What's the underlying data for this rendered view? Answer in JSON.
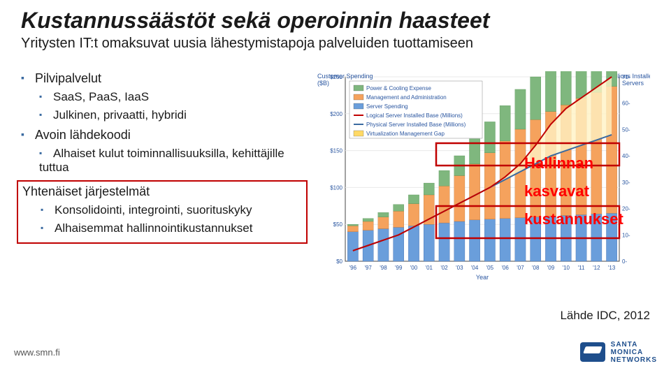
{
  "header": {
    "title": "Kustannussäästöt sekä operoinnin haasteet",
    "subtitle": "Yritysten IT:t omaksuvat uusia lähestymistapoja palveluiden tuottamiseen"
  },
  "bullets": {
    "lvl1": [
      {
        "text": "Pilvipalvelut",
        "children": [
          {
            "text": "SaaS, PaaS, IaaS"
          },
          {
            "text": "Julkinen, privaatti, hybridi"
          }
        ]
      },
      {
        "text": "Avoin lähdekoodi",
        "children": [
          {
            "text": "Alhaiset kulut toiminnallisuuksilla, kehittäjille tuttua"
          }
        ]
      },
      {
        "text": "Yhtenäiset järjestelmät",
        "boxed": true,
        "children": [
          {
            "text": "Konsolidointi, integrointi, suorituskyky"
          },
          {
            "text": "Alhaisemmat hallinnointikustannukset"
          }
        ]
      }
    ]
  },
  "chart": {
    "type": "combo-bar-line",
    "y_left_label": "Customer Spending ($B)",
    "y_right_label": "Millions Installed Servers",
    "y_left_max": 250,
    "y_left_ticks": [
      50,
      100,
      150,
      200,
      250
    ],
    "y_right_max": 70,
    "y_right_ticks": [
      0,
      10,
      20,
      30,
      40,
      50,
      60,
      70
    ],
    "x_label": "Year",
    "x_cats": [
      "'96",
      "'97",
      "'98",
      "'99",
      "'00",
      "'01",
      "'02",
      "'03",
      "'04",
      "'05",
      "'06",
      "'07",
      "'08",
      "'09",
      "'10",
      "'11",
      "'12",
      "'13"
    ],
    "legend": [
      {
        "label": "Power & Cooling Expense",
        "color": "#7fb77e",
        "type": "bar"
      },
      {
        "label": "Management and Administration",
        "color": "#f5a25d",
        "type": "bar"
      },
      {
        "label": "Server Spending",
        "color": "#6a9edb",
        "type": "bar"
      },
      {
        "label": "Logical Server Installed Base (Millions)",
        "color": "#c00000",
        "type": "line"
      },
      {
        "label": "Physical Server Installed Base (Millions)",
        "color": "#3a6aa0",
        "type": "line"
      },
      {
        "label": "Virtualization Management Gap",
        "color": "#ffd966",
        "type": "area"
      }
    ],
    "segA": [
      40,
      42,
      44,
      46,
      48,
      50,
      52,
      54,
      56,
      57,
      58,
      59,
      60,
      61,
      62,
      63,
      64,
      65
    ],
    "segB": [
      8,
      12,
      16,
      22,
      30,
      40,
      50,
      62,
      76,
      90,
      105,
      120,
      132,
      142,
      150,
      158,
      165,
      172
    ],
    "segC": [
      2,
      4,
      6,
      9,
      12,
      16,
      21,
      27,
      34,
      42,
      48,
      54,
      58,
      62,
      66,
      70,
      74,
      78
    ],
    "phys": [
      4,
      6,
      8,
      10,
      13,
      16,
      19,
      22,
      25,
      28,
      31,
      34,
      37,
      40,
      42,
      44,
      46,
      48
    ],
    "log": [
      4,
      6,
      8,
      10,
      13,
      16,
      19,
      22,
      25,
      28,
      32,
      37,
      44,
      52,
      58,
      62,
      66,
      70
    ],
    "colors": {
      "axis": "#444444",
      "grid": "#e9e9e9",
      "gap_fill": "#fff3c4",
      "red_box": "#c00000",
      "bg": "#ffffff",
      "legend_text": "#2a56a0",
      "axis_text": "#2a56a0"
    },
    "font": {
      "legend": 8,
      "ticks": 8,
      "axis_label": 9
    }
  },
  "overlay": {
    "line1": "Hallinnan",
    "line2": "kasvavat",
    "line3": "kustannukset",
    "color": "#ff0000"
  },
  "source": "Lähde IDC, 2012",
  "footer": {
    "url": "www.smn.fi",
    "logo_line1": "SANTA",
    "logo_line2": "MONICA",
    "logo_line3": "NETWORKS",
    "logo_color": "#1e4e8c"
  }
}
